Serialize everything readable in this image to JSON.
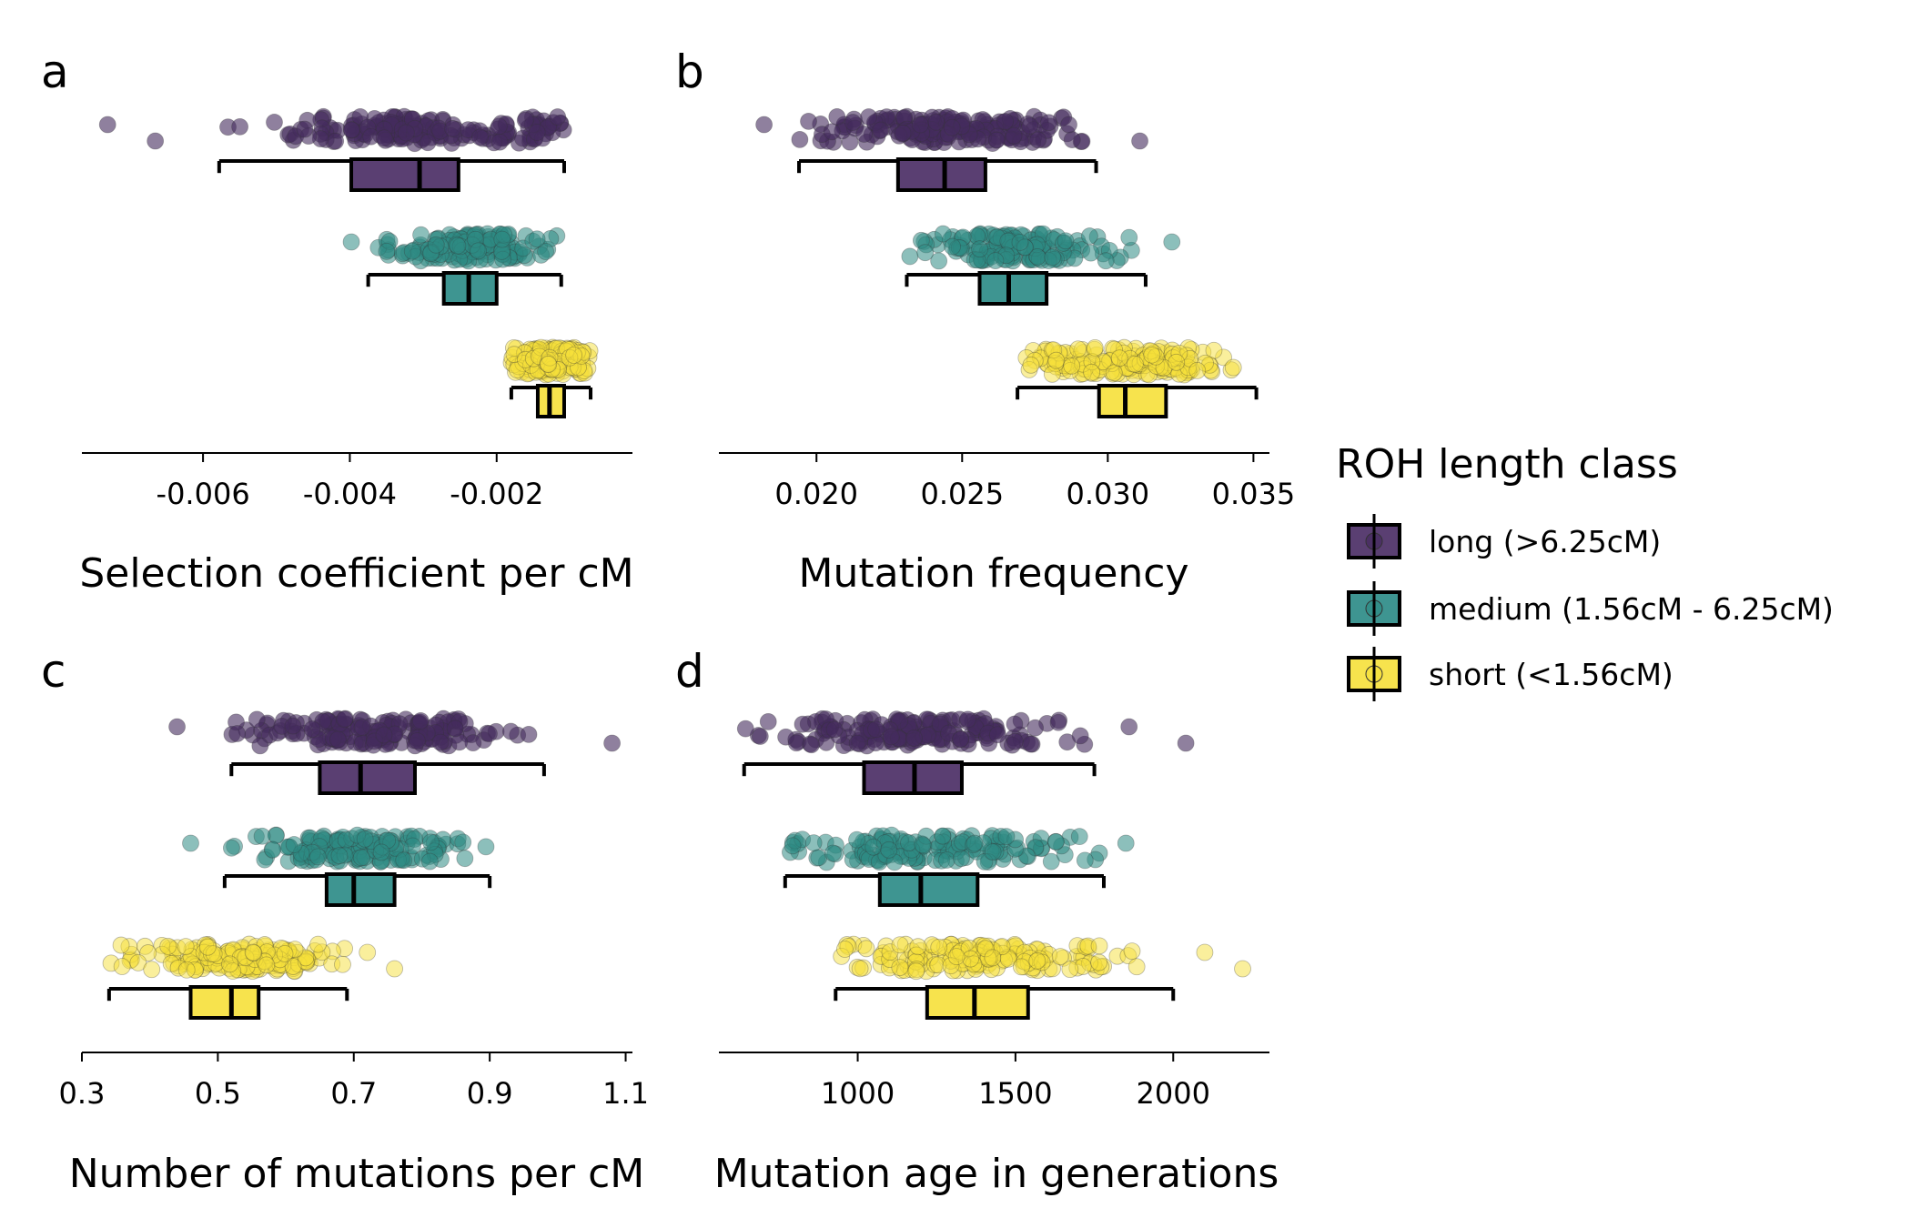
{
  "legend": {
    "title": "ROH length class",
    "items": [
      {
        "label": "long (>6.25cM)",
        "color": "#452b5e"
      },
      {
        "label": "medium (1.56cM - 6.25cM)",
        "color": "#2e8b84"
      },
      {
        "label": "short (<1.56cM)",
        "color": "#f5e03a"
      }
    ]
  },
  "chart_data": [
    {
      "type": "boxplot",
      "panel": "a",
      "xlabel": "Selection coefficient per cM",
      "xlim": [
        -0.00765,
        -0.00015
      ],
      "ticks": [
        -0.006,
        -0.004,
        -0.002
      ],
      "tick_labels": [
        "-0.006",
        "-0.004",
        "-0.002"
      ],
      "series": [
        {
          "name": "long (>6.25cM)",
          "whisker_low": -0.00578,
          "q1": -0.00398,
          "median": -0.00305,
          "q3": -0.00252,
          "whisker_high": -0.00108,
          "outliers": [
            -0.0073,
            -0.00665
          ]
        },
        {
          "name": "medium (1.56cM - 6.25cM)",
          "whisker_low": -0.00375,
          "q1": -0.00272,
          "median": -0.00238,
          "q3": -0.002,
          "whisker_high": -0.00112,
          "outliers": [
            -0.00398
          ]
        },
        {
          "name": "short (<1.56cM)",
          "whisker_low": -0.0018,
          "q1": -0.00144,
          "median": -0.00128,
          "q3": -0.00108,
          "whisker_high": -0.00072,
          "outliers": []
        }
      ]
    },
    {
      "type": "boxplot",
      "panel": "b",
      "xlabel": "Mutation frequency",
      "xlim": [
        0.01665,
        0.03555
      ],
      "ticks": [
        0.02,
        0.025,
        0.03,
        0.035
      ],
      "tick_labels": [
        "0.020",
        "0.025",
        "0.030",
        "0.035"
      ],
      "series": [
        {
          "name": "long (>6.25cM)",
          "whisker_low": 0.0194,
          "q1": 0.0228,
          "median": 0.0244,
          "q3": 0.0258,
          "whisker_high": 0.0296,
          "outliers": [
            0.0182,
            0.0311
          ]
        },
        {
          "name": "medium (1.56cM - 6.25cM)",
          "whisker_low": 0.0231,
          "q1": 0.0256,
          "median": 0.0266,
          "q3": 0.0279,
          "whisker_high": 0.0313,
          "outliers": [
            0.0322
          ]
        },
        {
          "name": "short (<1.56cM)",
          "whisker_low": 0.0269,
          "q1": 0.0297,
          "median": 0.0306,
          "q3": 0.032,
          "whisker_high": 0.0351,
          "outliers": []
        }
      ]
    },
    {
      "type": "boxplot",
      "panel": "c",
      "xlabel": "Number of mutations per cM",
      "xlim": [
        0.3,
        1.11
      ],
      "ticks": [
        0.3,
        0.5,
        0.7,
        0.9,
        1.1
      ],
      "tick_labels": [
        "0.3",
        "0.5",
        "0.7",
        "0.9",
        "1.1"
      ],
      "series": [
        {
          "name": "long (>6.25cM)",
          "whisker_low": 0.52,
          "q1": 0.65,
          "median": 0.71,
          "q3": 0.79,
          "whisker_high": 0.98,
          "outliers": [
            0.44,
            1.08
          ]
        },
        {
          "name": "medium (1.56cM - 6.25cM)",
          "whisker_low": 0.51,
          "q1": 0.66,
          "median": 0.7,
          "q3": 0.76,
          "whisker_high": 0.9,
          "outliers": [
            0.46
          ]
        },
        {
          "name": "short (<1.56cM)",
          "whisker_low": 0.34,
          "q1": 0.46,
          "median": 0.52,
          "q3": 0.56,
          "whisker_high": 0.69,
          "outliers": [
            0.72,
            0.76
          ]
        }
      ]
    },
    {
      "type": "boxplot",
      "panel": "d",
      "xlabel": "Mutation age in generations",
      "xlim": [
        560,
        2305
      ],
      "ticks": [
        1000,
        1500,
        2000
      ],
      "tick_labels": [
        "1000",
        "1500",
        "2000"
      ],
      "series": [
        {
          "name": "long (>6.25cM)",
          "whisker_low": 640,
          "q1": 1020,
          "median": 1180,
          "q3": 1330,
          "whisker_high": 1750,
          "outliers": [
            1860,
            2040
          ]
        },
        {
          "name": "medium (1.56cM - 6.25cM)",
          "whisker_low": 770,
          "q1": 1070,
          "median": 1200,
          "q3": 1380,
          "whisker_high": 1780,
          "outliers": [
            1850
          ]
        },
        {
          "name": "short (<1.56cM)",
          "whisker_low": 930,
          "q1": 1220,
          "median": 1370,
          "q3": 1540,
          "whisker_high": 2000,
          "outliers": [
            2100,
            2220
          ]
        }
      ]
    }
  ]
}
